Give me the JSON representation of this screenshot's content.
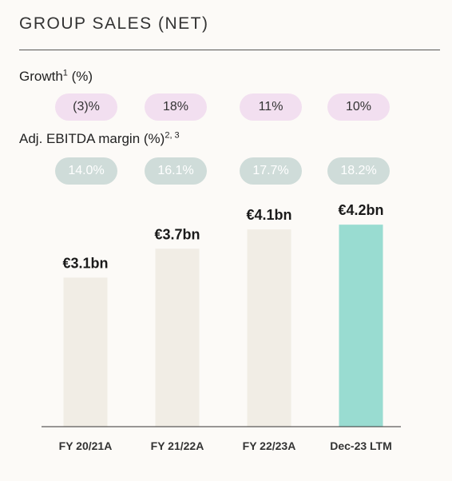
{
  "title": "GROUP SALES (NET)",
  "growth_row": {
    "label_main": "Growth",
    "label_sup": "1",
    "label_unit": " (%)",
    "values": [
      "(3)%",
      "18%",
      "11%",
      "10%"
    ]
  },
  "margin_row": {
    "label_main": "Adj. EBITDA margin (%)",
    "label_sup": "2, 3",
    "values": [
      "14.0%",
      "16.1%",
      "17.7%",
      "18.2%"
    ]
  },
  "colors": {
    "bar_default": "#f1ede5",
    "bar_highlight": "#99dcd1",
    "growth_pill": "#f2dff0",
    "margin_pill": "#cfdcd9",
    "axis": "#333333"
  },
  "chart_data": {
    "type": "bar",
    "categories": [
      "FY 20/21A",
      "FY 21/22A",
      "FY 22/23A",
      "Dec-23 LTM"
    ],
    "values": [
      3.1,
      3.7,
      4.1,
      4.2
    ],
    "data_labels": [
      "€3.1bn",
      "€3.7bn",
      "€4.1bn",
      "€4.2bn"
    ],
    "highlight_index": 3,
    "title": "GROUP SALES (NET)",
    "xlabel": "",
    "ylabel": "",
    "unit": "€bn",
    "grid": false,
    "legend": "none"
  }
}
